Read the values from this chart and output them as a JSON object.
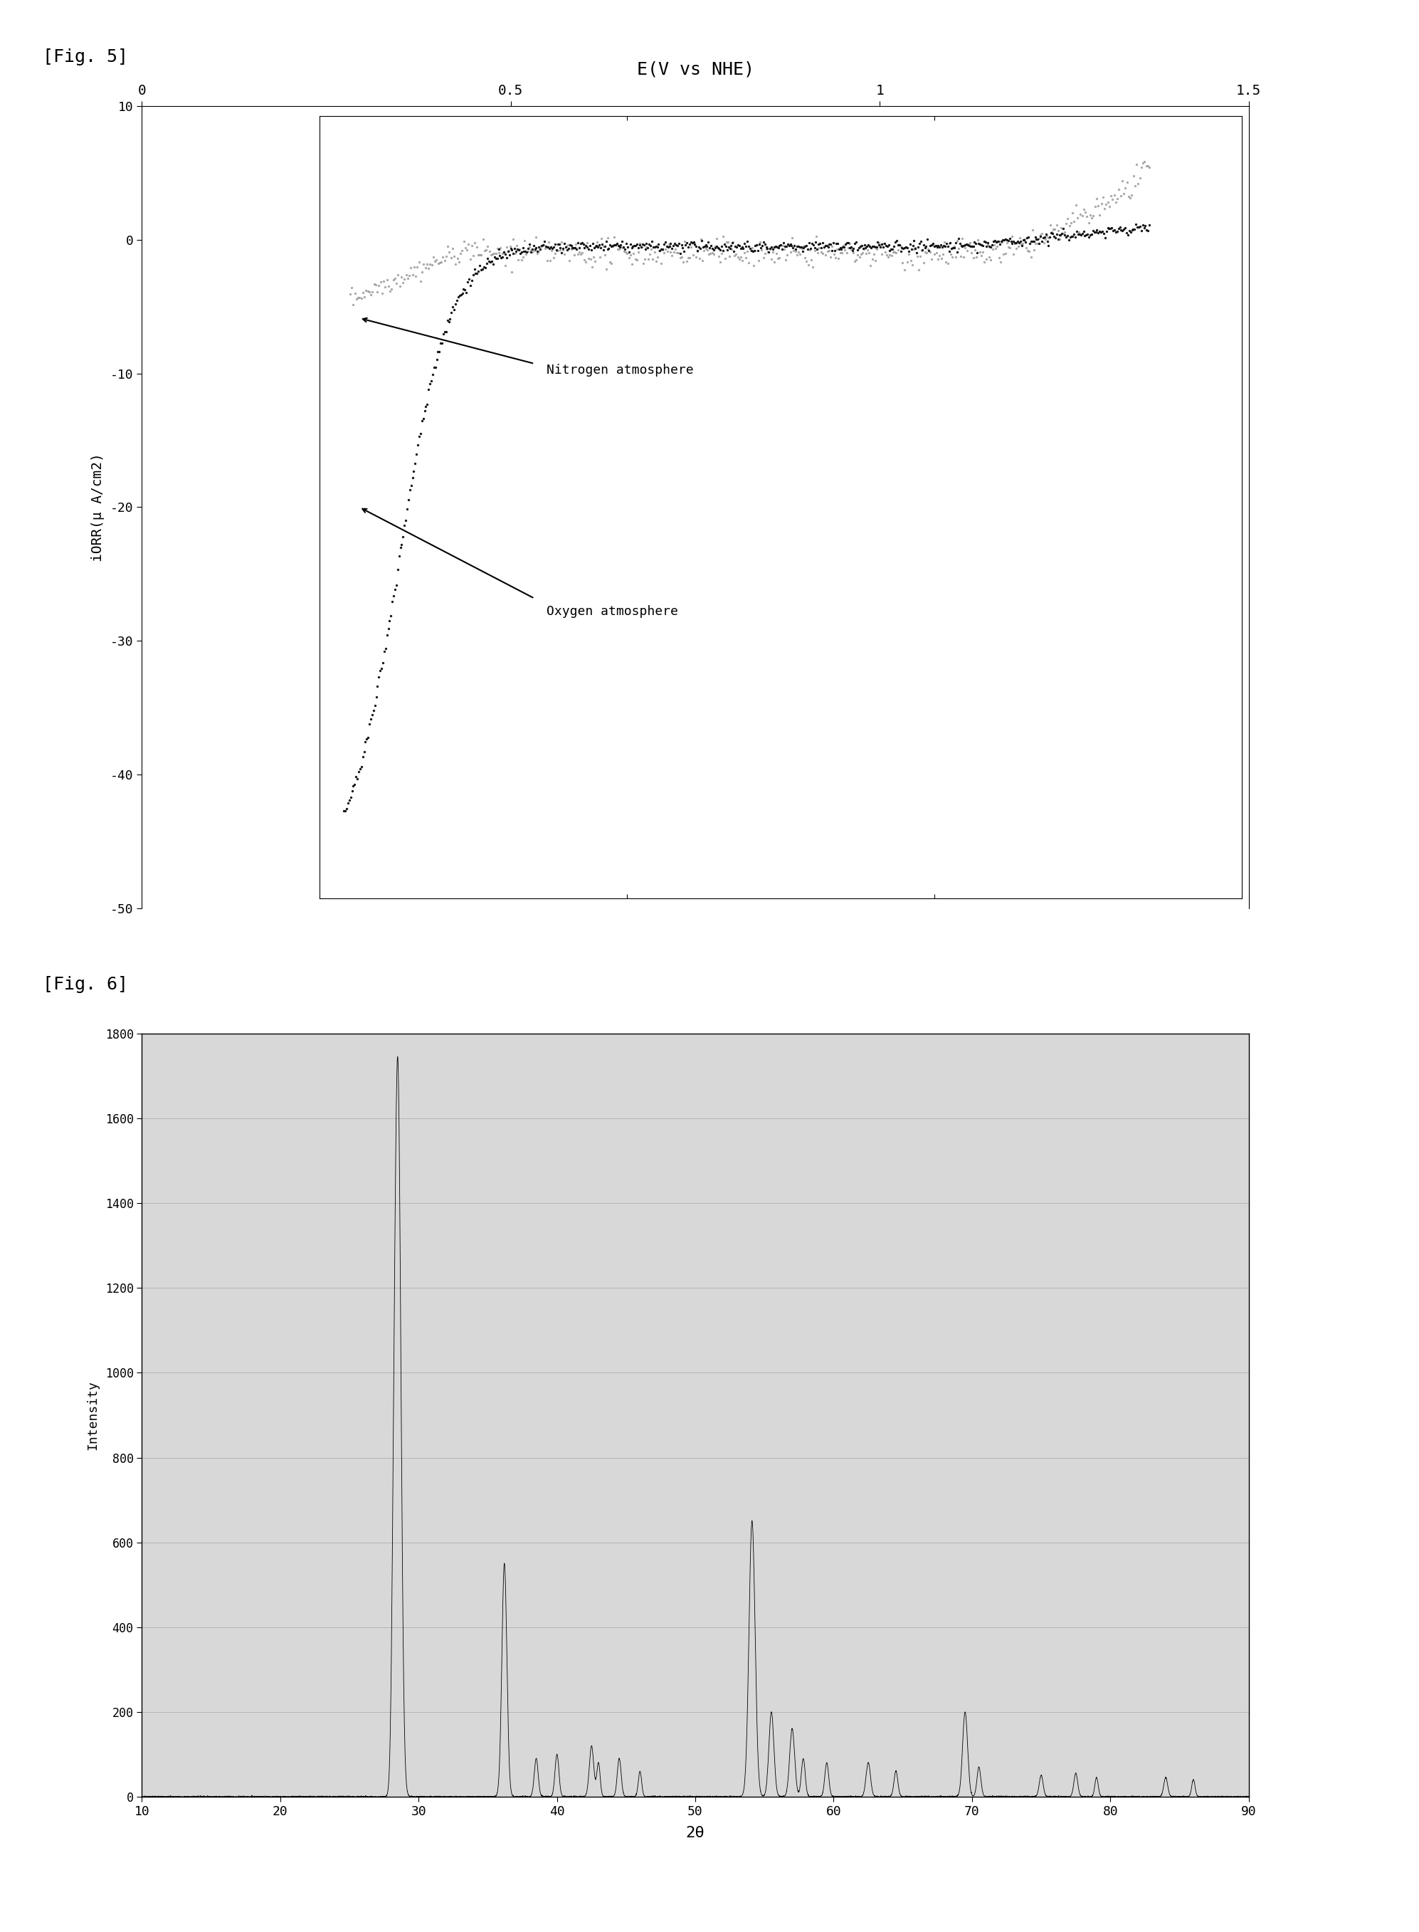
{
  "fig5": {
    "title": "E(V vs NHE)",
    "ylabel": "iORR(μ A/cm2)",
    "xlim": [
      0,
      1.5
    ],
    "ylim": [
      -50,
      10
    ],
    "xticks": [
      0,
      0.5,
      1.0,
      1.5
    ],
    "yticks": [
      10,
      0,
      -10,
      -20,
      -30,
      -40,
      -50
    ],
    "nitrogen_label": "Nitrogen atmosphere",
    "oxygen_label": "Oxygen atmosphere",
    "nitrogen_color": "#999999",
    "oxygen_color": "#111111"
  },
  "fig6": {
    "xlabel": "2θ",
    "ylabel": "Intensity",
    "xlim": [
      10,
      90
    ],
    "ylim": [
      0,
      1800
    ],
    "xticks": [
      10,
      20,
      30,
      40,
      50,
      60,
      70,
      80,
      90
    ],
    "yticks": [
      0,
      200,
      400,
      600,
      800,
      1000,
      1200,
      1400,
      1600,
      1800
    ],
    "bg_color": "#d8d8d8",
    "line_color": "#000000"
  },
  "fig5_label": "[Fig. 5]",
  "fig6_label": "[Fig. 6]"
}
